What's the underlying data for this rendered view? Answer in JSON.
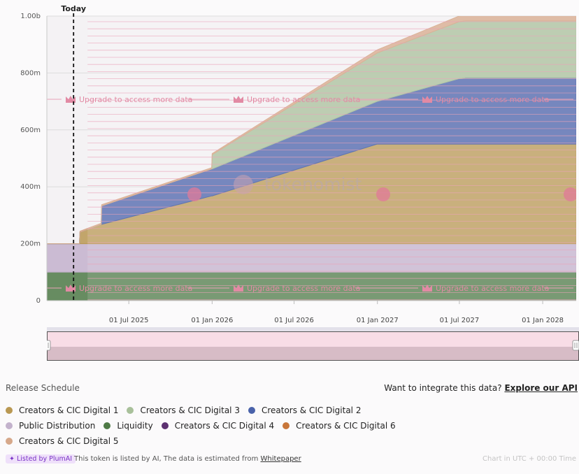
{
  "chart_data": {
    "type": "area",
    "stacked": true,
    "title": "",
    "ylim": [
      0,
      1000000000
    ],
    "yticks": [
      {
        "value": 0,
        "label": "0"
      },
      {
        "value": 200000000,
        "label": "200m"
      },
      {
        "value": 400000000,
        "label": "400m"
      },
      {
        "value": 600000000,
        "label": "600m"
      },
      {
        "value": 800000000,
        "label": "800m"
      },
      {
        "value": 1000000000,
        "label": "1.00b"
      }
    ],
    "xrange": [
      "2025-01-01",
      "2028-03-15"
    ],
    "xticks": [
      {
        "value": "2025-07-01",
        "label": "01 Jul 2025"
      },
      {
        "value": "2026-01-01",
        "label": "01 Jan 2026"
      },
      {
        "value": "2026-07-01",
        "label": "01 Jul 2026"
      },
      {
        "value": "2027-01-01",
        "label": "01 Jan 2027"
      },
      {
        "value": "2027-07-01",
        "label": "01 Jul 2027"
      },
      {
        "value": "2028-01-01",
        "label": "01 Jan 2028"
      }
    ],
    "today": {
      "date": "2025-03-01",
      "label": "Today"
    },
    "grid": true,
    "x": [
      "2025-01-01",
      "2025-03-14",
      "2025-03-15",
      "2025-05-01",
      "2025-05-02",
      "2025-12-31",
      "2026-01-01",
      "2026-12-31",
      "2027-06-30",
      "2027-07-15",
      "2027-12-31",
      "2028-03-15"
    ],
    "series": [
      {
        "name": "Liquidity",
        "color": "#4e7a46",
        "values": [
          100000000,
          100000000,
          100000000,
          100000000,
          100000000,
          100000000,
          100000000,
          100000000,
          100000000,
          100000000,
          100000000,
          100000000
        ]
      },
      {
        "name": "Public Distribution",
        "color": "#c3b2cc",
        "values": [
          100000000,
          100000000,
          100000000,
          100000000,
          100000000,
          100000000,
          100000000,
          100000000,
          100000000,
          100000000,
          100000000,
          100000000
        ]
      },
      {
        "name": "Creators & CIC Digital 1",
        "color": "#b99852",
        "values": [
          0,
          0,
          40000000,
          68000000,
          68000000,
          168000000,
          168000000,
          350000000,
          350000000,
          350000000,
          350000000,
          350000000
        ]
      },
      {
        "name": "Creators & CIC Digital 2",
        "color": "#4a62aa",
        "values": [
          0,
          0,
          0,
          0,
          65000000,
          95000000,
          95000000,
          150000000,
          230000000,
          233000000,
          233000000,
          233000000
        ]
      },
      {
        "name": "Creators & CIC Digital 3",
        "color": "#a8c09a",
        "values": [
          0,
          0,
          0,
          0,
          0,
          0,
          50000000,
          170000000,
          200000000,
          200000000,
          200000000,
          200000000
        ]
      },
      {
        "name": "Creators & CIC Digital 4",
        "color": "#5c3170",
        "values": [
          0,
          0,
          0,
          0,
          0,
          0,
          0,
          0,
          0,
          0,
          0,
          0
        ]
      },
      {
        "name": "Creators & CIC Digital 6",
        "color": "#c8763a",
        "values": [
          0,
          0,
          0,
          0,
          0,
          0,
          0,
          0,
          0,
          0,
          0,
          0
        ]
      },
      {
        "name": "Creators & CIC Digital 5",
        "color": "#d6a88a",
        "values": [
          0,
          0,
          4000000,
          4000000,
          4000000,
          4000000,
          4000000,
          11000000,
          20000000,
          20000000,
          21000000,
          21000000
        ]
      }
    ],
    "overlay_text": "Upgrade to access more data",
    "watermark": "tokenomist"
  },
  "footer": {
    "release_schedule": "Release Schedule",
    "integrate_text": "Want to integrate this data?",
    "explore_api": "Explore our API"
  },
  "legend": [
    {
      "name": "Creators & CIC Digital 1",
      "color": "#b99852"
    },
    {
      "name": "Creators & CIC Digital 3",
      "color": "#a8c09a"
    },
    {
      "name": "Creators & CIC Digital 2",
      "color": "#4a62aa"
    },
    {
      "name": "Public Distribution",
      "color": "#c3b2cc"
    },
    {
      "name": "Liquidity",
      "color": "#4e7a46"
    },
    {
      "name": "Creators & CIC Digital 4",
      "color": "#5c3170"
    },
    {
      "name": "Creators & CIC Digital 6",
      "color": "#c8763a"
    },
    {
      "name": "Creators & CIC Digital 5",
      "color": "#d6a88a"
    }
  ],
  "bottom": {
    "badge": "Listed by PlumAI",
    "listed_text": "This token is listed by AI, The data is estimated from",
    "whitepaper": "Whitepaper",
    "timezone": "Chart in UTC + 00:00 Time"
  }
}
